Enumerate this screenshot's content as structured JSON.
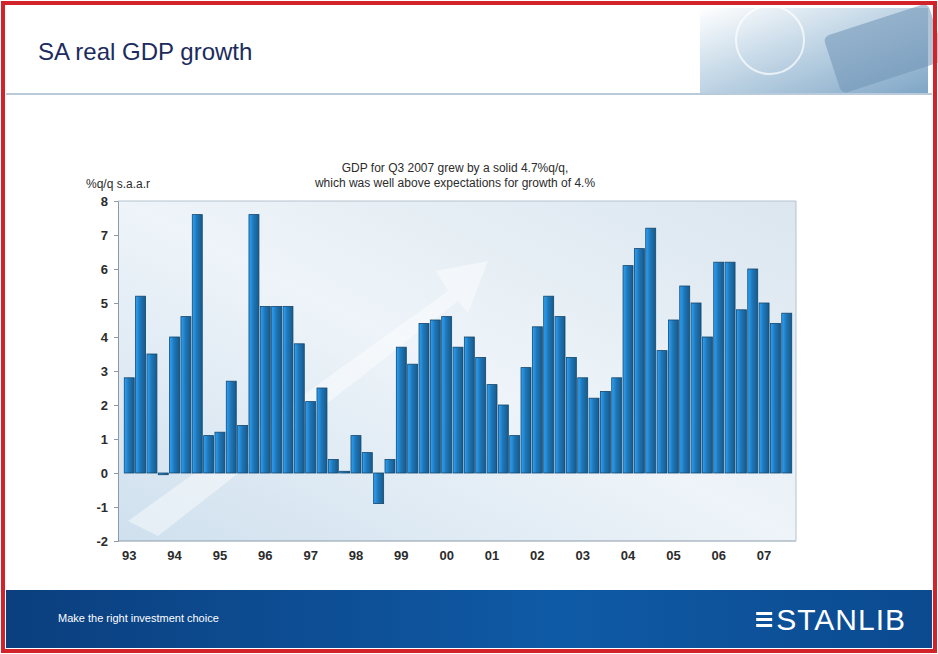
{
  "chart_data": {
    "type": "bar",
    "title": "SA real GDP growth",
    "subtitle": [
      "GDP for Q3 2007 grew by a solid 4.7%q/q,",
      "which was well above expectations for growth of 4.%"
    ],
    "y_label": "%q/q s.a.a.r",
    "categories": [
      "93",
      null,
      null,
      null,
      "94",
      null,
      null,
      null,
      "95",
      null,
      null,
      null,
      "96",
      null,
      null,
      null,
      "97",
      null,
      null,
      null,
      "98",
      null,
      null,
      null,
      "99",
      null,
      null,
      null,
      "00",
      null,
      null,
      null,
      "01",
      null,
      null,
      null,
      "02",
      null,
      null,
      null,
      "03",
      null,
      null,
      null,
      "04",
      null,
      null,
      null,
      "05",
      null,
      null,
      null,
      "06",
      null,
      null,
      null,
      "07",
      null,
      null
    ],
    "values": [
      2.8,
      5.2,
      3.5,
      -0.05,
      4.0,
      4.6,
      7.6,
      1.1,
      1.2,
      2.7,
      1.4,
      7.6,
      4.9,
      4.9,
      4.9,
      3.8,
      2.1,
      2.5,
      0.4,
      0.05,
      1.1,
      0.6,
      -0.9,
      0.4,
      3.7,
      3.2,
      4.4,
      4.5,
      4.6,
      3.7,
      4.0,
      3.4,
      2.6,
      2.0,
      1.1,
      3.1,
      4.3,
      5.2,
      4.6,
      3.4,
      2.8,
      2.2,
      2.4,
      2.8,
      6.1,
      6.6,
      7.2,
      3.6,
      4.5,
      5.5,
      5.0,
      4.0,
      6.2,
      6.2,
      4.8,
      6.0,
      5.0,
      4.4,
      4.7
    ],
    "color": "#1f77b8",
    "ylim": [
      -2,
      8
    ],
    "yticks": [
      -2,
      -1,
      0,
      1,
      2,
      3,
      4,
      5,
      6,
      7,
      8
    ],
    "grid": false
  },
  "footer": {
    "tagline": "Make the right investment choice",
    "logo": "STANLIB"
  }
}
